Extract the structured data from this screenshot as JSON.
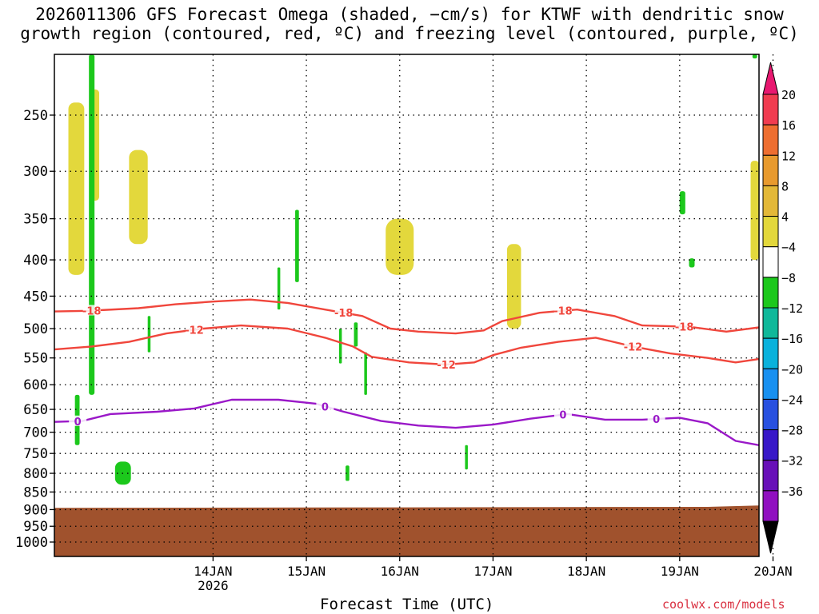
{
  "title_line1": "2026011306 GFS Forecast Omega (shaded, −cm/s) for KTWF with dendritic snow",
  "title_line2": "growth region (contoured, red, ºC) and freezing level (contoured, purple, ºC)",
  "credit": "coolwx.com/models",
  "chart_data": {
    "type": "heatmap",
    "title": "2026011306 GFS Forecast Omega (shaded, −cm/s) for KTWF with dendritic snow growth region (contoured, red, ºC) and freezing level (contoured, purple, ºC)",
    "xlabel": "Forecast Time (UTC)",
    "ylabel": "",
    "y_scale": "log-pressure",
    "y_ticks": [
      250,
      300,
      350,
      400,
      450,
      500,
      550,
      600,
      650,
      700,
      750,
      800,
      850,
      900,
      950,
      1000
    ],
    "ylim": [
      1000,
      200
    ],
    "x_ticks": [
      {
        "label": "14JAN",
        "sub": "2026",
        "day": 1
      },
      {
        "label": "15JAN",
        "sub": "",
        "day": 2
      },
      {
        "label": "16JAN",
        "sub": "",
        "day": 3
      },
      {
        "label": "17JAN",
        "sub": "",
        "day": 4
      },
      {
        "label": "18JAN",
        "sub": "",
        "day": 5
      },
      {
        "label": "19JAN",
        "sub": "",
        "day": 6
      },
      {
        "label": "20JAN",
        "sub": "",
        "day": 7
      }
    ],
    "xlim_days": [
      -0.7,
      6.85
    ],
    "grid": true,
    "colorbar": {
      "labels": [
        "20",
        "16",
        "12",
        "8",
        "4",
        "−4",
        "−8",
        "−12",
        "−16",
        "−20",
        "−24",
        "−28",
        "−32",
        "−36"
      ],
      "colors": [
        "#f03c50",
        "#ee6e30",
        "#e89a2e",
        "#e3b838",
        "#e3d83c",
        "#ffffff",
        "#1cc81c",
        "#10b89a",
        "#0ab2dc",
        "#1890f0",
        "#2850e0",
        "#3818c8",
        "#6810b8",
        "#9010c0",
        "#a8a8a8"
      ],
      "top_arrow_color": "#e81870",
      "bottom_arrow_color": "#000000"
    },
    "terrain_color": "#a0522d",
    "terrain_pressure": [
      {
        "day": -0.7,
        "p": 895
      },
      {
        "day": 6.3,
        "p": 892
      },
      {
        "day": 6.85,
        "p": 888
      }
    ],
    "contours": [
      {
        "label": "-18",
        "color": "#f0463c",
        "points": [
          {
            "day": -0.7,
            "p": 473
          },
          {
            "day": -0.35,
            "p": 472
          },
          {
            "day": 0.2,
            "p": 468
          },
          {
            "day": 0.6,
            "p": 462
          },
          {
            "day": 1.0,
            "p": 458
          },
          {
            "day": 1.4,
            "p": 455
          },
          {
            "day": 1.8,
            "p": 460
          },
          {
            "day": 2.2,
            "p": 470
          },
          {
            "day": 2.6,
            "p": 480
          },
          {
            "day": 2.9,
            "p": 500
          },
          {
            "day": 3.2,
            "p": 505
          },
          {
            "day": 3.6,
            "p": 508
          },
          {
            "day": 3.9,
            "p": 503
          },
          {
            "day": 4.1,
            "p": 488
          },
          {
            "day": 4.5,
            "p": 475
          },
          {
            "day": 4.9,
            "p": 470
          },
          {
            "day": 5.3,
            "p": 480
          },
          {
            "day": 5.6,
            "p": 495
          },
          {
            "day": 6.1,
            "p": 497
          },
          {
            "day": 6.5,
            "p": 505
          },
          {
            "day": 6.85,
            "p": 498
          }
        ],
        "label_days": [
          -0.3,
          2.4,
          4.75,
          6.05
        ]
      },
      {
        "label": "-12",
        "color": "#f0463c",
        "points": [
          {
            "day": -0.7,
            "p": 535
          },
          {
            "day": -0.3,
            "p": 530
          },
          {
            "day": 0.1,
            "p": 522
          },
          {
            "day": 0.5,
            "p": 508
          },
          {
            "day": 0.9,
            "p": 500
          },
          {
            "day": 1.3,
            "p": 495
          },
          {
            "day": 1.8,
            "p": 500
          },
          {
            "day": 2.2,
            "p": 515
          },
          {
            "day": 2.5,
            "p": 530
          },
          {
            "day": 2.7,
            "p": 548
          },
          {
            "day": 3.1,
            "p": 558
          },
          {
            "day": 3.5,
            "p": 562
          },
          {
            "day": 3.8,
            "p": 558
          },
          {
            "day": 4.0,
            "p": 545
          },
          {
            "day": 4.3,
            "p": 532
          },
          {
            "day": 4.7,
            "p": 522
          },
          {
            "day": 5.1,
            "p": 515
          },
          {
            "day": 5.5,
            "p": 530
          },
          {
            "day": 5.9,
            "p": 542
          },
          {
            "day": 6.3,
            "p": 550
          },
          {
            "day": 6.6,
            "p": 558
          },
          {
            "day": 6.85,
            "p": 552
          }
        ],
        "label_days": [
          0.8,
          3.5,
          5.5
        ]
      },
      {
        "label": "0",
        "color": "#9a18c8",
        "points": [
          {
            "day": -0.7,
            "p": 677
          },
          {
            "day": -0.4,
            "p": 675
          },
          {
            "day": -0.1,
            "p": 660
          },
          {
            "day": 0.4,
            "p": 655
          },
          {
            "day": 0.8,
            "p": 648
          },
          {
            "day": 1.2,
            "p": 630
          },
          {
            "day": 1.7,
            "p": 630
          },
          {
            "day": 2.1,
            "p": 638
          },
          {
            "day": 2.4,
            "p": 655
          },
          {
            "day": 2.8,
            "p": 675
          },
          {
            "day": 3.2,
            "p": 685
          },
          {
            "day": 3.6,
            "p": 690
          },
          {
            "day": 4.0,
            "p": 683
          },
          {
            "day": 4.4,
            "p": 670
          },
          {
            "day": 4.8,
            "p": 660
          },
          {
            "day": 5.2,
            "p": 672
          },
          {
            "day": 5.6,
            "p": 672
          },
          {
            "day": 6.0,
            "p": 668
          },
          {
            "day": 6.3,
            "p": 680
          },
          {
            "day": 6.6,
            "p": 720
          },
          {
            "day": 6.85,
            "p": 730
          }
        ],
        "label_days": [
          -0.45,
          2.2,
          4.75,
          5.75
        ]
      }
    ],
    "omega_regions": [
      {
        "class": "4",
        "day0": -0.62,
        "day1": -0.28,
        "p0": 200,
        "p1": 470
      },
      {
        "class": "8",
        "day0": -0.55,
        "day1": -0.38,
        "p0": 240,
        "p1": 420
      },
      {
        "class": "4",
        "day0": -0.35,
        "day1": -0.15,
        "p0": 200,
        "p1": 620
      },
      {
        "class": "8",
        "day0": -0.32,
        "day1": -0.22,
        "p0": 230,
        "p1": 330
      },
      {
        "class": "-4",
        "day0": -0.33,
        "day1": -0.27,
        "p0": 200,
        "p1": 620
      },
      {
        "class": "4",
        "day0": 0.0,
        "day1": 0.6,
        "p0": 220,
        "p1": 480
      },
      {
        "class": "8",
        "day0": 0.1,
        "day1": 0.3,
        "p0": 280,
        "p1": 380
      },
      {
        "class": "4",
        "day0": 0.4,
        "day1": 0.65,
        "p0": 420,
        "p1": 520
      },
      {
        "class": "4",
        "day0": 1.65,
        "day1": 2.05,
        "p0": 200,
        "p1": 300
      },
      {
        "class": "4",
        "day0": 1.95,
        "day1": 2.25,
        "p0": 300,
        "p1": 420
      },
      {
        "class": "4",
        "day0": 2.65,
        "day1": 3.4,
        "p0": 270,
        "p1": 460
      },
      {
        "class": "8",
        "day0": 2.85,
        "day1": 3.15,
        "p0": 350,
        "p1": 420
      },
      {
        "class": "4",
        "day0": 3.0,
        "day1": 3.25,
        "p0": 460,
        "p1": 520
      },
      {
        "class": "4",
        "day0": 3.8,
        "day1": 4.1,
        "p0": 310,
        "p1": 620
      },
      {
        "class": "4",
        "day0": 4.1,
        "day1": 4.4,
        "p0": 300,
        "p1": 560
      },
      {
        "class": "8",
        "day0": 4.15,
        "day1": 4.3,
        "p0": 380,
        "p1": 500
      },
      {
        "class": "4",
        "day0": 4.8,
        "day1": 4.88,
        "p0": 380,
        "p1": 420
      },
      {
        "class": "4",
        "day0": 5.35,
        "day1": 5.45,
        "p0": 465,
        "p1": 550
      },
      {
        "class": "4",
        "day0": 6.72,
        "day1": 6.85,
        "p0": 260,
        "p1": 440
      },
      {
        "class": "8",
        "day0": 6.76,
        "day1": 6.85,
        "p0": 290,
        "p1": 400
      },
      {
        "class": "-4",
        "day0": -0.48,
        "day1": -0.43,
        "p0": 620,
        "p1": 730
      },
      {
        "class": "-4",
        "day0": -0.05,
        "day1": 0.12,
        "p0": 770,
        "p1": 830
      },
      {
        "class": "-4",
        "day0": 0.3,
        "day1": 0.33,
        "p0": 480,
        "p1": 540
      },
      {
        "class": "-4",
        "day0": 1.69,
        "day1": 1.72,
        "p0": 410,
        "p1": 470
      },
      {
        "class": "-4",
        "day0": 1.88,
        "day1": 1.92,
        "p0": 340,
        "p1": 430
      },
      {
        "class": "-4",
        "day0": 2.35,
        "day1": 2.38,
        "p0": 500,
        "p1": 560
      },
      {
        "class": "-4",
        "day0": 2.42,
        "day1": 2.46,
        "p0": 780,
        "p1": 820
      },
      {
        "class": "-4",
        "day0": 2.51,
        "day1": 2.55,
        "p0": 490,
        "p1": 530
      },
      {
        "class": "-4",
        "day0": 2.62,
        "day1": 2.65,
        "p0": 540,
        "p1": 620
      },
      {
        "class": "-4",
        "day0": 3.7,
        "day1": 3.73,
        "p0": 730,
        "p1": 790
      },
      {
        "class": "-4",
        "day0": 6.0,
        "day1": 6.06,
        "p0": 320,
        "p1": 345
      },
      {
        "class": "-4",
        "day0": 6.1,
        "day1": 6.16,
        "p0": 398,
        "p1": 410
      },
      {
        "class": "-4",
        "day0": 6.78,
        "day1": 6.83,
        "p0": 200,
        "p1": 208
      }
    ]
  }
}
